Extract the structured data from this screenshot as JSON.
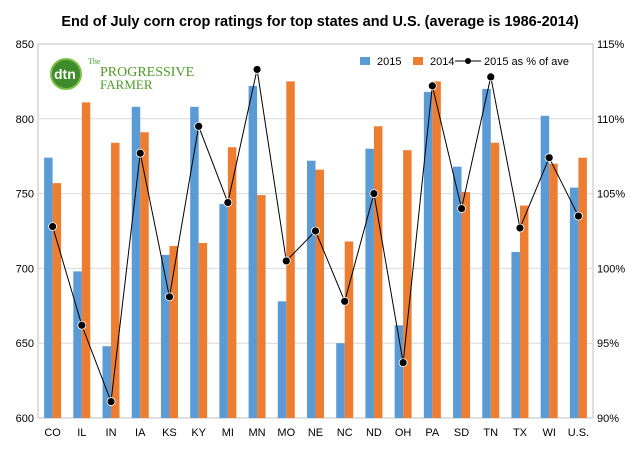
{
  "chart_data": {
    "type": "bar",
    "title": "End of July corn crop ratings for top states and U.S. (average is 1986-2014)",
    "categories": [
      "CO",
      "IL",
      "IN",
      "IA",
      "KS",
      "KY",
      "MI",
      "MN",
      "MO",
      "NE",
      "NC",
      "ND",
      "OH",
      "PA",
      "SD",
      "TN",
      "TX",
      "WI",
      "U.S."
    ],
    "series": [
      {
        "name": "2015",
        "kind": "bar",
        "axis": "left",
        "color": "#5b9bd5",
        "values": [
          774,
          698,
          648,
          808,
          709,
          808,
          743,
          822,
          678,
          772,
          650,
          780,
          662,
          818,
          768,
          820,
          711,
          802,
          754
        ]
      },
      {
        "name": "2014",
        "kind": "bar",
        "axis": "left",
        "color": "#ed7d31",
        "values": [
          757,
          811,
          784,
          791,
          715,
          717,
          781,
          749,
          825,
          766,
          718,
          795,
          779,
          825,
          751,
          784,
          742,
          770,
          774
        ]
      },
      {
        "name": "2015 as % of ave",
        "kind": "line",
        "axis": "right",
        "color": "#000000",
        "values": [
          102.8,
          96.2,
          91.1,
          107.7,
          98.1,
          109.5,
          104.4,
          113.3,
          100.5,
          102.5,
          97.8,
          105.0,
          93.7,
          112.2,
          104.0,
          112.8,
          102.7,
          107.4,
          103.5
        ]
      }
    ],
    "y_left": {
      "min": 600,
      "max": 850,
      "step": 50,
      "ticks": [
        "600",
        "650",
        "700",
        "750",
        "800",
        "850"
      ]
    },
    "y_right": {
      "min": 90,
      "max": 115,
      "step": 5,
      "ticks": [
        "90%",
        "95%",
        "100%",
        "105%",
        "110%",
        "115%"
      ]
    },
    "xlabel": "",
    "ylabel": "",
    "grid": "horizontal",
    "legend": "top-right"
  },
  "logo": {
    "badge": "dtn",
    "line1": "The",
    "line2": "PROGRESSIVE",
    "line3": "FARMER"
  }
}
